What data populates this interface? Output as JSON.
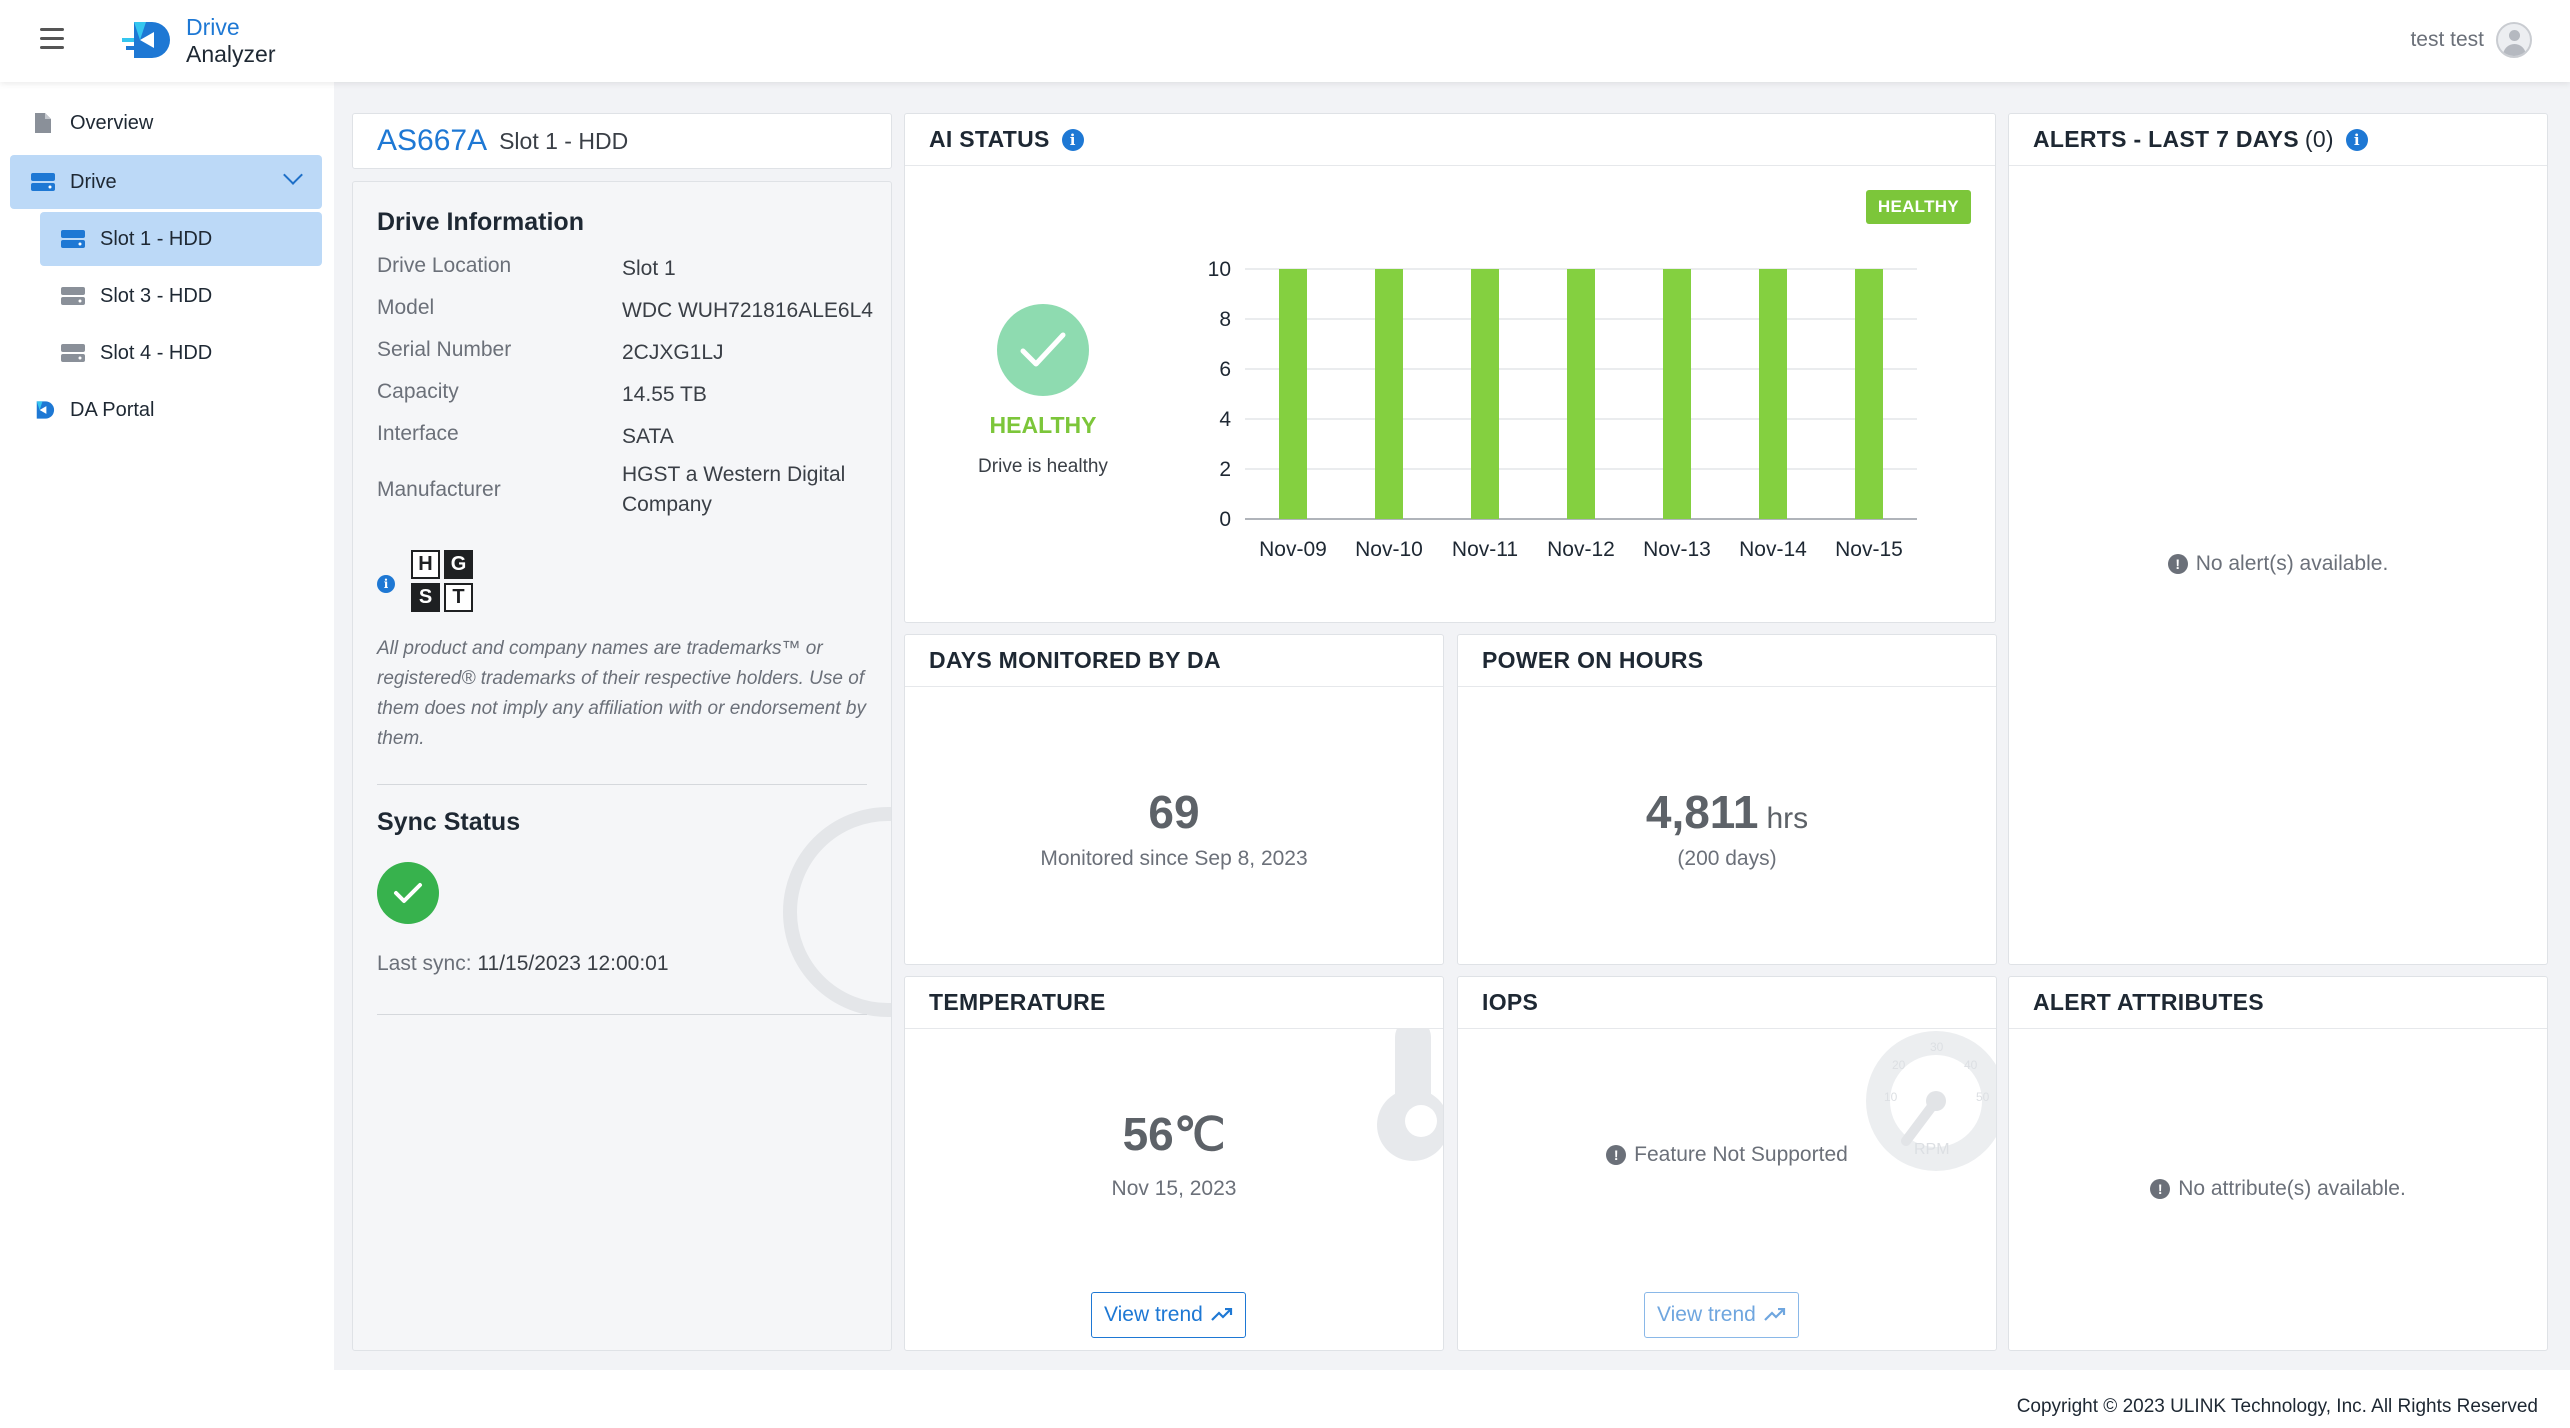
{
  "brand": {
    "line1": "Drive",
    "line2": "Analyzer"
  },
  "user": {
    "name": "test test"
  },
  "sidebar": {
    "items": [
      {
        "label": "Overview"
      },
      {
        "label": "Drive"
      },
      {
        "label": "Slot 1 - HDD"
      },
      {
        "label": "Slot 3 - HDD"
      },
      {
        "label": "Slot 4 - HDD"
      },
      {
        "label": "DA Portal"
      }
    ]
  },
  "drive": {
    "id": "AS667A",
    "slot": "Slot 1 - HDD"
  },
  "info": {
    "heading": "Drive Information",
    "rows": [
      {
        "key": "Drive Location",
        "value": "Slot 1"
      },
      {
        "key": "Model",
        "value": "WDC WUH721816ALE6L4"
      },
      {
        "key": "Serial Number",
        "value": "2CJXG1LJ"
      },
      {
        "key": "Capacity",
        "value": "14.55 TB"
      },
      {
        "key": "Interface",
        "value": "SATA"
      },
      {
        "key": "Manufacturer",
        "value": "HGST a Western Digital Company"
      }
    ],
    "logo_letters": [
      "H",
      "G",
      "S",
      "T"
    ],
    "disclaimer": "All product and company names are trademarks™ or registered® trademarks of their respective holders. Use of them does not imply any affiliation with or endorsement by them.",
    "sync_heading": "Sync Status",
    "last_sync_label": "Last sync:",
    "last_sync_value": "11/15/2023 12:00:01"
  },
  "ai": {
    "title": "AI STATUS",
    "badge": "HEALTHY",
    "status": "HEALTHY",
    "sub": "Drive is healthy",
    "accent": "#7cc63a"
  },
  "chart_data": {
    "type": "bar",
    "categories": [
      "Nov-09",
      "Nov-10",
      "Nov-11",
      "Nov-12",
      "Nov-13",
      "Nov-14",
      "Nov-15"
    ],
    "values": [
      10,
      10,
      10,
      10,
      10,
      10,
      10
    ],
    "ylim": [
      0,
      10
    ],
    "yticks": [
      0,
      2,
      4,
      6,
      8,
      10
    ],
    "grid": true,
    "color": "#84d040"
  },
  "alerts": {
    "title": "ALERTS - LAST 7 DAYS",
    "count": "(0)",
    "empty": "No alert(s) available."
  },
  "days": {
    "title": "DAYS MONITORED BY DA",
    "value": "69",
    "sub": "Monitored since Sep 8, 2023"
  },
  "power": {
    "title": "POWER ON HOURS",
    "value": "4,811",
    "unit": "hrs",
    "sub": "(200 days)"
  },
  "temperature": {
    "title": "TEMPERATURE",
    "value": "56℃",
    "date": "Nov 15, 2023",
    "trend": "View trend"
  },
  "iops": {
    "title": "IOPS",
    "msg": "Feature Not Supported",
    "trend": "View trend"
  },
  "attributes": {
    "title": "ALERT ATTRIBUTES",
    "empty": "No attribute(s) available."
  },
  "footer": {
    "copyright": "Copyright © 2023 ULINK Technology, Inc. All Rights Reserved"
  }
}
